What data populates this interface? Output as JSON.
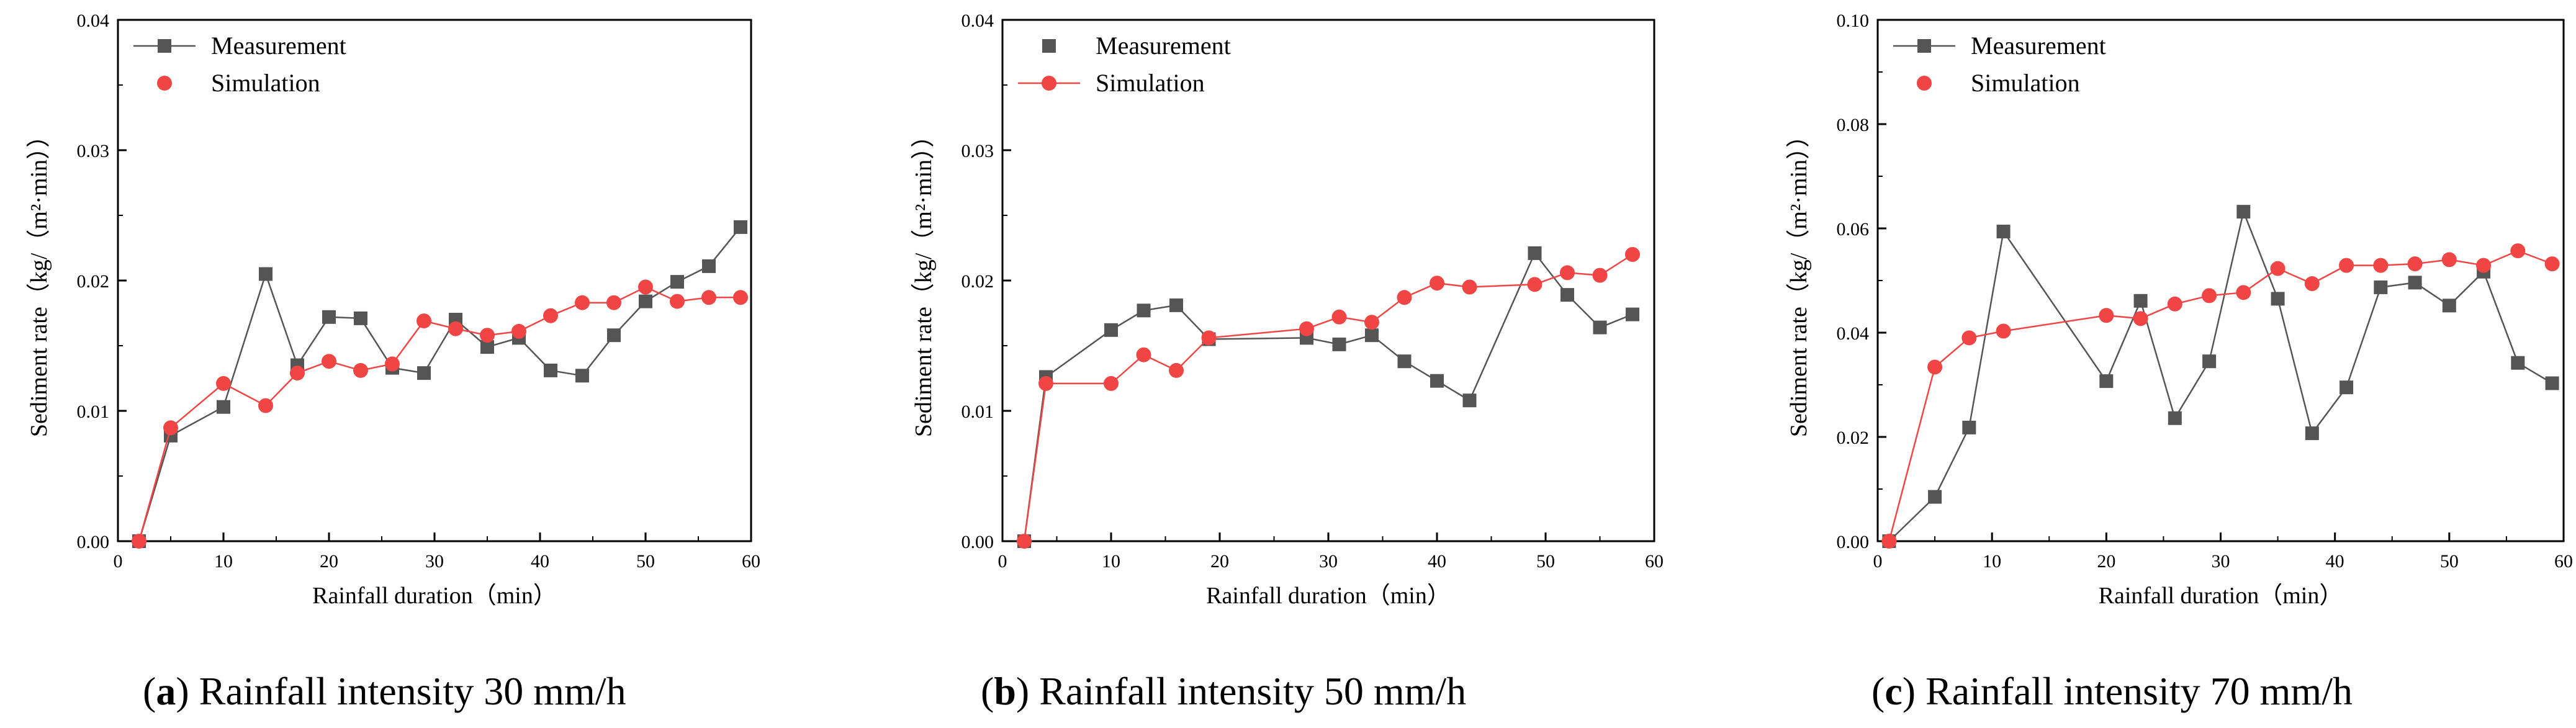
{
  "chart_data": [
    {
      "type": "line",
      "panel_letter": "a",
      "caption": "Rainfall intensity 30 mm/h",
      "xlabel": "Rainfall duration（min）",
      "ylabel": "Sediment rate（kg/（m²·min））",
      "xlim": [
        0,
        60
      ],
      "ylim": [
        0,
        0.04
      ],
      "xticks": [
        0,
        10,
        20,
        30,
        40,
        50,
        60
      ],
      "yticks": [
        0.0,
        0.01,
        0.02,
        0.03,
        0.04
      ],
      "ytick_labels": [
        "0.00",
        "0.01",
        "0.02",
        "0.03",
        "0.04"
      ],
      "legend_position": "top-left",
      "grid": false,
      "series": [
        {
          "name": "Measurement",
          "color": "#555555",
          "marker": "square",
          "line": true,
          "legend_line": true,
          "x": [
            2,
            5,
            10,
            14,
            17,
            20,
            23,
            26,
            29,
            32,
            35,
            38,
            41,
            44,
            47,
            50,
            53,
            56,
            59
          ],
          "values": [
            0.0,
            0.0081,
            0.0103,
            0.0205,
            0.0135,
            0.0172,
            0.0171,
            0.0133,
            0.0129,
            0.017,
            0.0149,
            0.0156,
            0.0131,
            0.0127,
            0.0158,
            0.0184,
            0.0199,
            0.0211,
            0.0241
          ]
        },
        {
          "name": "Simulation",
          "color": "#f04545",
          "marker": "circle",
          "line": true,
          "legend_line": false,
          "x": [
            2,
            5,
            10,
            14,
            17,
            20,
            23,
            26,
            29,
            32,
            35,
            38,
            41,
            44,
            47,
            50,
            53,
            56,
            59
          ],
          "values": [
            0.0,
            0.0087,
            0.0121,
            0.0104,
            0.0129,
            0.0138,
            0.0131,
            0.0136,
            0.0169,
            0.0163,
            0.0158,
            0.0161,
            0.0173,
            0.0183,
            0.0183,
            0.0195,
            0.0184,
            0.0187,
            0.0187
          ]
        }
      ]
    },
    {
      "type": "line",
      "panel_letter": "b",
      "caption": "Rainfall intensity 50 mm/h",
      "xlabel": "Rainfall duration（min）",
      "ylabel": "Sediment rate（kg/（m²·min））",
      "xlim": [
        0,
        60
      ],
      "ylim": [
        0,
        0.04
      ],
      "xticks": [
        0,
        10,
        20,
        30,
        40,
        50,
        60
      ],
      "yticks": [
        0.0,
        0.01,
        0.02,
        0.03,
        0.04
      ],
      "ytick_labels": [
        "0.00",
        "0.01",
        "0.02",
        "0.03",
        "0.04"
      ],
      "legend_position": "top-left",
      "grid": false,
      "series": [
        {
          "name": "Measurement",
          "color": "#555555",
          "marker": "square",
          "line": true,
          "legend_line": false,
          "x": [
            2,
            4,
            10,
            13,
            16,
            19,
            28,
            31,
            34,
            37,
            40,
            43,
            49,
            52,
            55,
            58
          ],
          "values": [
            0.0,
            0.0126,
            0.0162,
            0.0177,
            0.0181,
            0.0155,
            0.0156,
            0.0151,
            0.0158,
            0.0138,
            0.0123,
            0.0108,
            0.0221,
            0.0189,
            0.0164,
            0.0174
          ]
        },
        {
          "name": "Simulation",
          "color": "#f04545",
          "marker": "circle",
          "line": true,
          "legend_line": true,
          "x": [
            2,
            4,
            10,
            13,
            16,
            19,
            28,
            31,
            34,
            37,
            40,
            43,
            49,
            52,
            55,
            58
          ],
          "values": [
            0.0,
            0.0121,
            0.0121,
            0.0143,
            0.0131,
            0.0156,
            0.0163,
            0.0172,
            0.0168,
            0.0187,
            0.0198,
            0.0195,
            0.0197,
            0.0206,
            0.0204,
            0.022
          ]
        }
      ]
    },
    {
      "type": "line",
      "panel_letter": "c",
      "caption": "Rainfall intensity 70 mm/h",
      "xlabel": "Rainfall duration（min）",
      "ylabel": "Sediment rate（kg/（m²·min））",
      "xlim": [
        0,
        60
      ],
      "ylim": [
        0,
        0.1
      ],
      "xticks": [
        0,
        10,
        20,
        30,
        40,
        50,
        60
      ],
      "yticks": [
        0.0,
        0.02,
        0.04,
        0.06,
        0.08,
        0.1
      ],
      "ytick_labels": [
        "0.00",
        "0.02",
        "0.04",
        "0.06",
        "0.08",
        "0.10"
      ],
      "legend_position": "top-left",
      "grid": false,
      "series": [
        {
          "name": "Measurement",
          "color": "#555555",
          "marker": "square",
          "line": true,
          "legend_line": true,
          "x": [
            1,
            5,
            8,
            11,
            20,
            23,
            26,
            29,
            32,
            35,
            38,
            41,
            44,
            47,
            50,
            53,
            56,
            59
          ],
          "values": [
            0.0,
            0.0085,
            0.0218,
            0.0594,
            0.0307,
            0.0461,
            0.0236,
            0.0345,
            0.0632,
            0.0465,
            0.0207,
            0.0295,
            0.0487,
            0.0496,
            0.0452,
            0.0517,
            0.0342,
            0.0303
          ]
        },
        {
          "name": "Simulation",
          "color": "#f04545",
          "marker": "circle",
          "line": true,
          "legend_line": false,
          "x": [
            1,
            5,
            8,
            11,
            20,
            23,
            26,
            29,
            32,
            35,
            38,
            41,
            44,
            47,
            50,
            53,
            56,
            59
          ],
          "values": [
            0.0,
            0.0334,
            0.039,
            0.0403,
            0.0433,
            0.0427,
            0.0455,
            0.0471,
            0.0477,
            0.0523,
            0.0494,
            0.0529,
            0.0529,
            0.0532,
            0.054,
            0.0529,
            0.0557,
            0.0532
          ]
        }
      ]
    }
  ]
}
